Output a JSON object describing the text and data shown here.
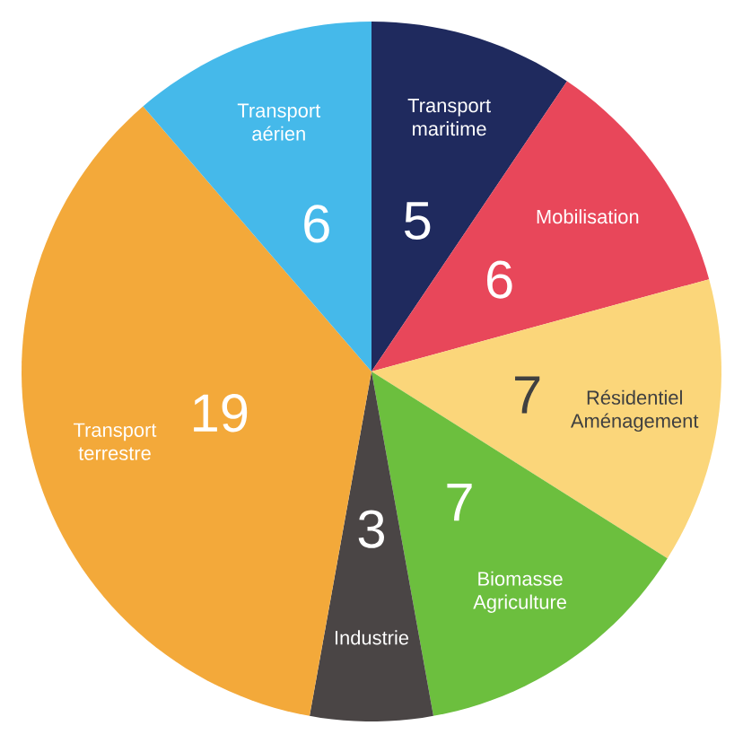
{
  "chart_data": {
    "type": "pie",
    "categories": [
      "Transport maritime",
      "Mobilisation",
      "Résidentiel Aménagement",
      "Biomasse Agriculture",
      "Industrie",
      "Transport terrestre",
      "Transport aérien"
    ],
    "values": [
      5,
      6,
      7,
      7,
      3,
      19,
      6
    ],
    "colors": [
      "#1f2a5e",
      "#e8475a",
      "#fbd67a",
      "#6cbf3e",
      "#4a4545",
      "#f3a93a",
      "#45b9ea"
    ],
    "data_labels": true
  }
}
